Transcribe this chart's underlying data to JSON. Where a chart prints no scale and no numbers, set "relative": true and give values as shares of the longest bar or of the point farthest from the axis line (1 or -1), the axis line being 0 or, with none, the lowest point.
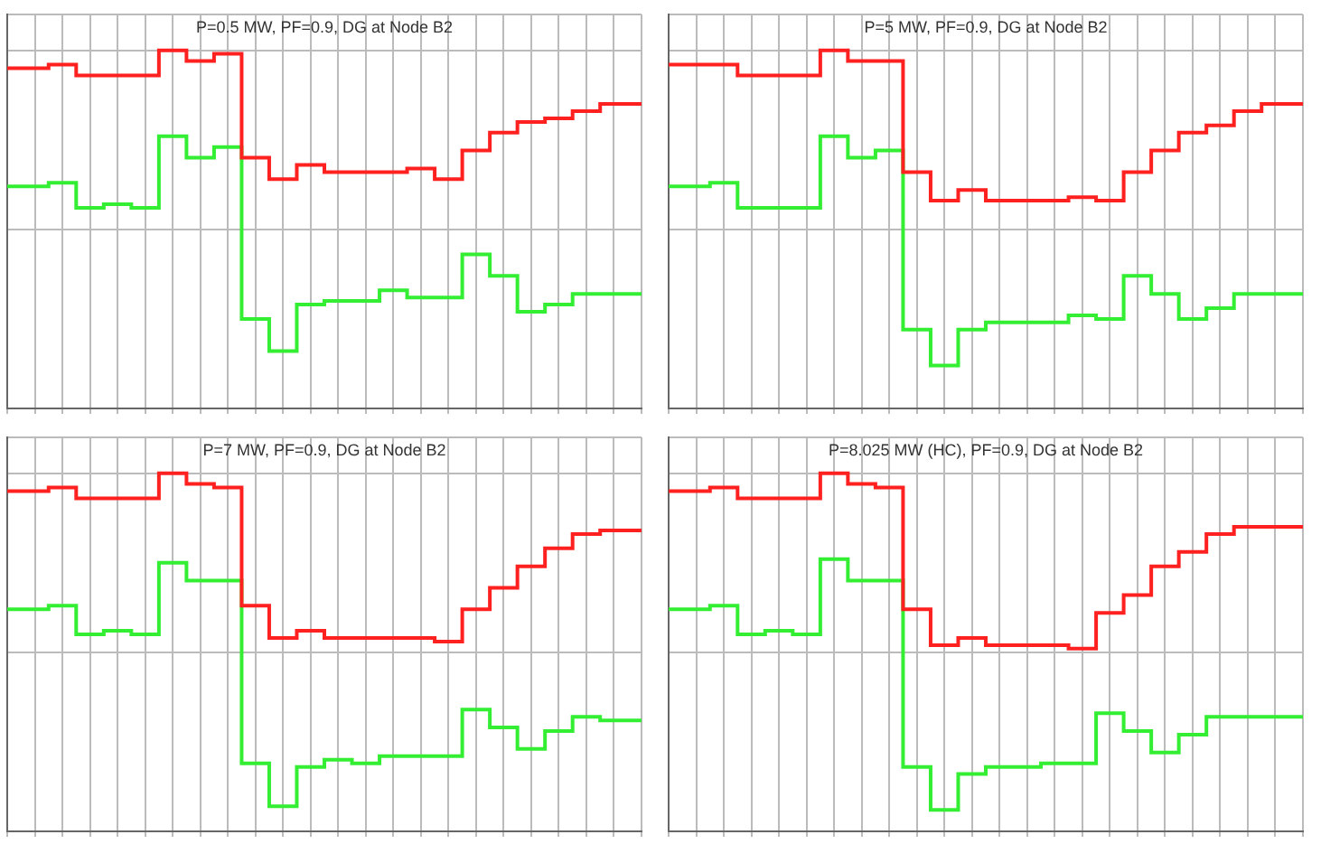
{
  "chart_data": [
    {
      "type": "step",
      "title": "P=0.5 MW, PF=0.9, DG at Node B2",
      "relative": true,
      "grid": true,
      "categories": [
        null,
        null,
        null,
        null,
        null,
        null,
        null,
        null,
        null,
        null,
        null,
        null,
        null,
        null,
        null,
        null,
        null,
        null,
        null,
        null,
        null,
        null,
        null,
        null
      ],
      "series": [
        {
          "color": "#ff2020",
          "values": [
            0.95,
            0.95,
            0.96,
            0.93,
            0.93,
            0.93,
            1,
            0.97,
            0.99,
            0.7,
            0.64,
            0.68,
            0.66,
            0.66,
            0.66,
            0.67,
            0.64,
            0.72,
            0.77,
            0.8,
            0.81,
            0.83,
            0.85,
            0.85
          ]
        },
        {
          "color": "#33ee33",
          "values": [
            0.62,
            0.62,
            0.63,
            0.56,
            0.57,
            0.56,
            0.76,
            0.7,
            0.73,
            0.25,
            0.16,
            0.29,
            0.3,
            0.3,
            0.33,
            0.31,
            0.31,
            0.43,
            0.37,
            0.27,
            0.29,
            0.32,
            0.32,
            0.32
          ]
        }
      ]
    },
    {
      "type": "step",
      "title": "P=5 MW, PF=0.9, DG at Node B2",
      "relative": true,
      "grid": true,
      "categories": [
        null,
        null,
        null,
        null,
        null,
        null,
        null,
        null,
        null,
        null,
        null,
        null,
        null,
        null,
        null,
        null,
        null,
        null,
        null,
        null,
        null,
        null,
        null,
        null
      ],
      "series": [
        {
          "color": "#ff2020",
          "values": [
            0.96,
            0.96,
            0.96,
            0.93,
            0.93,
            0.93,
            1,
            0.97,
            0.97,
            0.66,
            0.58,
            0.61,
            0.58,
            0.58,
            0.58,
            0.59,
            0.58,
            0.66,
            0.72,
            0.77,
            0.79,
            0.83,
            0.85,
            0.85
          ]
        },
        {
          "color": "#33ee33",
          "values": [
            0.62,
            0.62,
            0.63,
            0.56,
            0.56,
            0.56,
            0.76,
            0.7,
            0.72,
            0.22,
            0.12,
            0.22,
            0.24,
            0.24,
            0.24,
            0.26,
            0.25,
            0.37,
            0.32,
            0.25,
            0.28,
            0.32,
            0.32,
            0.32
          ]
        }
      ]
    },
    {
      "type": "step",
      "title": "P=7 MW, PF=0.9, DG at Node B2",
      "relative": true,
      "grid": true,
      "categories": [
        null,
        null,
        null,
        null,
        null,
        null,
        null,
        null,
        null,
        null,
        null,
        null,
        null,
        null,
        null,
        null,
        null,
        null,
        null,
        null,
        null,
        null,
        null,
        null
      ],
      "series": [
        {
          "color": "#ff2020",
          "values": [
            0.95,
            0.95,
            0.96,
            0.93,
            0.93,
            0.93,
            1,
            0.97,
            0.96,
            0.63,
            0.54,
            0.56,
            0.54,
            0.54,
            0.54,
            0.54,
            0.53,
            0.62,
            0.68,
            0.74,
            0.79,
            0.83,
            0.84,
            0.84
          ]
        },
        {
          "color": "#33ee33",
          "values": [
            0.62,
            0.62,
            0.63,
            0.55,
            0.56,
            0.55,
            0.75,
            0.7,
            0.7,
            0.19,
            0.07,
            0.18,
            0.2,
            0.19,
            0.21,
            0.21,
            0.21,
            0.34,
            0.29,
            0.23,
            0.28,
            0.32,
            0.31,
            0.31
          ]
        }
      ]
    },
    {
      "type": "step",
      "title": "P=8.025 MW (HC), PF=0.9, DG at Node B2",
      "relative": true,
      "grid": true,
      "categories": [
        null,
        null,
        null,
        null,
        null,
        null,
        null,
        null,
        null,
        null,
        null,
        null,
        null,
        null,
        null,
        null,
        null,
        null,
        null,
        null,
        null,
        null,
        null,
        null
      ],
      "series": [
        {
          "color": "#ff2020",
          "values": [
            0.95,
            0.95,
            0.96,
            0.93,
            0.93,
            0.93,
            1,
            0.97,
            0.96,
            0.62,
            0.52,
            0.54,
            0.52,
            0.52,
            0.52,
            0.51,
            0.61,
            0.66,
            0.74,
            0.78,
            0.83,
            0.85,
            0.85,
            0.85
          ]
        },
        {
          "color": "#33ee33",
          "values": [
            0.62,
            0.62,
            0.63,
            0.55,
            0.56,
            0.55,
            0.76,
            0.7,
            0.7,
            0.18,
            0.06,
            0.16,
            0.18,
            0.18,
            0.19,
            0.19,
            0.33,
            0.28,
            0.22,
            0.27,
            0.32,
            0.32,
            0.32,
            0.32
          ]
        }
      ]
    }
  ]
}
